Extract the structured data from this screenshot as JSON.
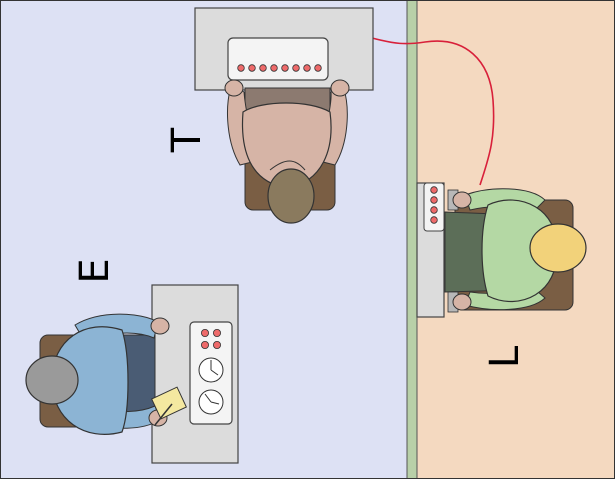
{
  "labels": {
    "teacher": "T",
    "experimenter": "E",
    "learner": "L"
  },
  "colors": {
    "left_room": "#dde1f4",
    "right_room": "#f4d9c0",
    "wall": "#b8d0a8",
    "wire": "#d8203a",
    "teacher_shirt": "#d6b4a6",
    "teacher_hair": "#8a7a5e",
    "experimenter_shirt": "#8cb4d4",
    "experimenter_hair": "#9a9a9a",
    "learner_shirt": "#b4d8a4",
    "learner_hair": "#f2d27a"
  },
  "icons": {
    "shock_generator": "shock-generator-icon",
    "clock": "clock-icon",
    "notepad": "notepad-icon",
    "chair": "chair-icon"
  }
}
